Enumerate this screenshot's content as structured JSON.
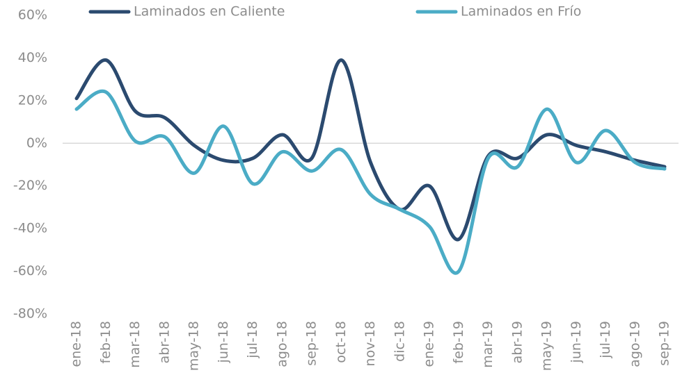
{
  "chart_data": {
    "type": "line",
    "categories": [
      "ene-18",
      "feb-18",
      "mar-18",
      "abr-18",
      "may-18",
      "jun-18",
      "jul-18",
      "ago-18",
      "sep-18",
      "oct-18",
      "nov-18",
      "dic-18",
      "ene-19",
      "feb-19",
      "mar-19",
      "abr-19",
      "may-19",
      "jun-19",
      "jul-19",
      "ago-19",
      "sep-19"
    ],
    "series": [
      {
        "name": "Laminados en Caliente",
        "color": "#2b4a6f",
        "values": [
          21,
          39,
          15,
          12,
          -1,
          -8,
          -7,
          4,
          -7,
          39,
          -9,
          -31,
          -20,
          -45,
          -6,
          -7,
          4,
          -1,
          -4,
          -8,
          -11
        ]
      },
      {
        "name": "Laminados en Frío",
        "color": "#4bacc6",
        "values": [
          16,
          24,
          1,
          3,
          -14,
          8,
          -19,
          -4,
          -13,
          -3,
          -24,
          -31,
          -39,
          -60,
          -7,
          -11,
          16,
          -9,
          6,
          -9,
          -12
        ]
      }
    ],
    "ylim": [
      -80,
      60
    ],
    "yticks": [
      {
        "value": -80,
        "label": "-80%"
      },
      {
        "value": -60,
        "label": "-60%"
      },
      {
        "value": -40,
        "label": "-40%"
      },
      {
        "value": -20,
        "label": "-20%"
      },
      {
        "value": 0,
        "label": "0%"
      },
      {
        "value": 20,
        "label": "20%"
      },
      {
        "value": 40,
        "label": "40%"
      },
      {
        "value": 60,
        "label": "60%"
      }
    ],
    "grid": false,
    "zero_line": true,
    "smooth": true,
    "legend": "top"
  }
}
